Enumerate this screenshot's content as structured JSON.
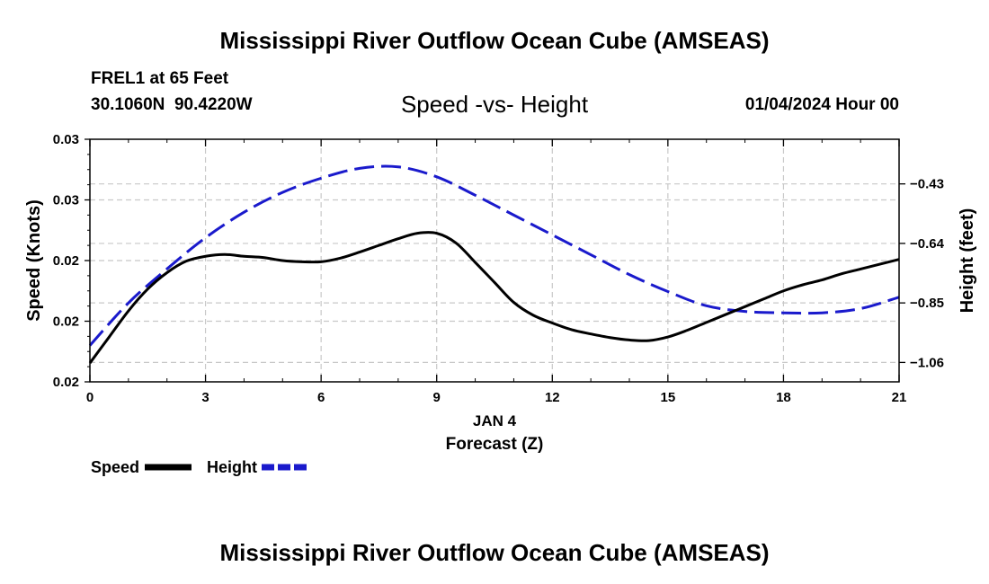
{
  "header": {
    "title": "Mississippi River Outflow Ocean Cube (AMSEAS)",
    "station": "FREL1 at 65 Feet",
    "coords": "30.1060N  90.4220W",
    "subtitle": "Speed -vs- Height",
    "datetime": "01/04/2024 Hour 00"
  },
  "footer": {
    "title": "Mississippi River Outflow Ocean Cube (AMSEAS)"
  },
  "legend": {
    "speed_label": "Speed",
    "height_label": "Height"
  },
  "colors": {
    "speed": "#000000",
    "height": "#1a1acc",
    "grid": "#c8c8c8"
  },
  "chart_data": {
    "type": "line",
    "title": "Speed -vs- Height",
    "xlabel": "Forecast (Z)",
    "xlabel_date": "JAN 4",
    "ylabel_left": "Speed (Knots)",
    "ylabel_right": "Height (feet)",
    "xlim": [
      0,
      21
    ],
    "x_ticks": [
      0,
      3,
      6,
      9,
      12,
      15,
      18,
      21
    ],
    "x_tick_labels": [
      "0",
      "3",
      "6",
      "9",
      "12",
      "15",
      "18",
      "21"
    ],
    "ylim_left": [
      0,
      4
    ],
    "y_left_ticks": [
      0,
      1,
      2,
      3,
      4
    ],
    "y_left_tick_labels": [
      "0.02",
      "0.02",
      "0.02",
      "0.03",
      "0.03"
    ],
    "ylim_right": [
      -1.1285,
      -0.2725
    ],
    "y_right_ticks": [
      -1.06,
      -0.85,
      -0.64,
      -0.43
    ],
    "y_right_tick_labels": [
      "−1.06",
      "−0.85",
      "−0.64",
      "−0.43"
    ],
    "grid": true,
    "series": [
      {
        "name": "Speed",
        "axis": "left",
        "style": "solid",
        "x": [
          0,
          0.5,
          1,
          1.5,
          2,
          2.5,
          3,
          3.5,
          4,
          4.5,
          5,
          5.5,
          6,
          6.5,
          7,
          7.5,
          8,
          8.5,
          9,
          9.5,
          10,
          10.5,
          11,
          11.5,
          12,
          12.5,
          13,
          13.5,
          14,
          14.5,
          15,
          15.5,
          16,
          16.5,
          17,
          17.5,
          18,
          18.5,
          19,
          19.5,
          20,
          20.5,
          21
        ],
        "values": [
          0.31,
          0.74,
          1.17,
          1.53,
          1.8,
          1.99,
          2.07,
          2.1,
          2.07,
          2.05,
          2.0,
          1.98,
          1.98,
          2.04,
          2.14,
          2.25,
          2.36,
          2.45,
          2.45,
          2.29,
          1.97,
          1.64,
          1.31,
          1.1,
          0.97,
          0.86,
          0.79,
          0.73,
          0.69,
          0.68,
          0.74,
          0.85,
          0.98,
          1.11,
          1.24,
          1.37,
          1.5,
          1.6,
          1.68,
          1.78,
          1.86,
          1.94,
          2.02
        ]
      },
      {
        "name": "Height",
        "axis": "right",
        "style": "dashed",
        "x": [
          0,
          1,
          2,
          3,
          4,
          5,
          6,
          7,
          8,
          9,
          10,
          11,
          12,
          13,
          14,
          15,
          16,
          17,
          18,
          19,
          20,
          21
        ],
        "values": [
          -1.0,
          -0.85,
          -0.73,
          -0.62,
          -0.53,
          -0.46,
          -0.41,
          -0.375,
          -0.37,
          -0.405,
          -0.47,
          -0.54,
          -0.61,
          -0.68,
          -0.75,
          -0.81,
          -0.86,
          -0.88,
          -0.885,
          -0.885,
          -0.87,
          -0.83
        ]
      }
    ]
  }
}
